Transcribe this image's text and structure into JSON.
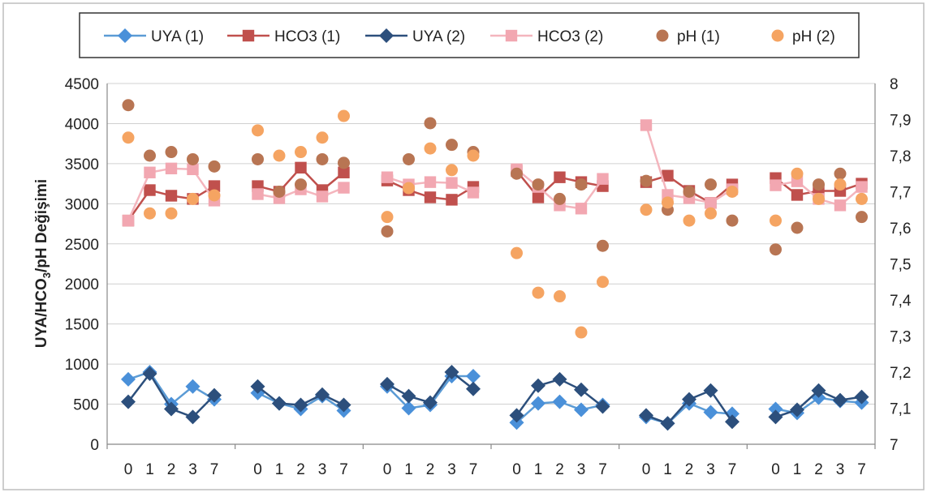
{
  "chart_data": {
    "type": "line",
    "title": "",
    "ylabel": "UYA/HCO3/pH Değişimi",
    "ylabel_parts": [
      "UYA/HCO",
      "3",
      "/pH Değişimi"
    ],
    "y2label": "",
    "ylim": [
      0,
      4500
    ],
    "yticks": [
      "0",
      "500",
      "1000",
      "1500",
      "2000",
      "2500",
      "3000",
      "3500",
      "4000",
      "4500"
    ],
    "y2lim": [
      7,
      8
    ],
    "y2ticks": [
      "7",
      "7,1",
      "7,2",
      "7,3",
      "7,4",
      "7,5",
      "7,6",
      "7,7",
      "7,8",
      "7,9",
      "8"
    ],
    "categories": [
      "0",
      "1",
      "2",
      "3",
      "7",
      "0",
      "1",
      "2",
      "3",
      "7",
      "0",
      "1",
      "2",
      "3",
      "7",
      "0",
      "1",
      "2",
      "3",
      "7",
      "0",
      "1",
      "2",
      "3",
      "7",
      "0",
      "1",
      "2",
      "3",
      "7"
    ],
    "group_size": 5,
    "grid": true,
    "legend_position": "top",
    "series": [
      {
        "name": "UYA (1)",
        "axis": "left",
        "style": "line",
        "marker": "diamond",
        "color": "#4a90d9",
        "line_color": "#5b9bd5",
        "values": [
          810,
          900,
          500,
          720,
          560,
          640,
          510,
          440,
          600,
          420,
          720,
          450,
          490,
          850,
          850,
          270,
          510,
          530,
          430,
          490,
          340,
          260,
          510,
          400,
          380,
          440,
          390,
          580,
          540,
          520
        ]
      },
      {
        "name": "HCO3 (1)",
        "axis": "left",
        "style": "line",
        "marker": "square",
        "color": "#c0504d",
        "line_color": "#c0504d",
        "values": [
          2790,
          3170,
          3100,
          3060,
          3220,
          3220,
          3150,
          3450,
          3170,
          3390,
          3290,
          3170,
          3080,
          3050,
          3210,
          3410,
          3080,
          3330,
          3270,
          3220,
          3270,
          3350,
          3160,
          3010,
          3240,
          3320,
          3110,
          3160,
          3160,
          3250
        ]
      },
      {
        "name": "UYA (2)",
        "axis": "left",
        "style": "line",
        "marker": "diamond",
        "color": "#2c4f7c",
        "line_color": "#2c4f7c",
        "values": [
          530,
          880,
          440,
          340,
          610,
          720,
          510,
          490,
          620,
          490,
          750,
          600,
          520,
          900,
          690,
          360,
          730,
          810,
          680,
          470,
          360,
          260,
          560,
          670,
          280,
          340,
          430,
          670,
          550,
          590
        ]
      },
      {
        "name": "HCO3 (2)",
        "axis": "left",
        "style": "line",
        "marker": "square",
        "color": "#f2a7b1",
        "line_color": "#f4b5bd",
        "values": [
          2790,
          3390,
          3440,
          3430,
          3040,
          3120,
          3070,
          3180,
          3090,
          3200,
          3330,
          3240,
          3270,
          3260,
          3140,
          3430,
          3210,
          2980,
          2940,
          3310,
          3980,
          3110,
          3070,
          3010,
          3180,
          3230,
          3280,
          3060,
          2980,
          3210
        ]
      },
      {
        "name": "pH (1)",
        "axis": "right",
        "style": "scatter",
        "marker": "circle",
        "color": "#b87553",
        "values": [
          7.94,
          7.8,
          7.81,
          7.79,
          7.77,
          7.79,
          7.7,
          7.72,
          7.79,
          7.78,
          7.59,
          7.79,
          7.89,
          7.83,
          7.81,
          7.75,
          7.72,
          7.68,
          7.72,
          7.55,
          7.73,
          7.65,
          7.7,
          7.72,
          7.62,
          7.54,
          7.6,
          7.72,
          7.75,
          7.63
        ]
      },
      {
        "name": "pH (2)",
        "axis": "right",
        "style": "scatter",
        "marker": "circle",
        "color": "#f5a462",
        "values": [
          7.85,
          7.64,
          7.64,
          7.68,
          7.69,
          7.87,
          7.8,
          7.81,
          7.85,
          7.91,
          7.63,
          7.71,
          7.82,
          7.76,
          7.8,
          7.53,
          7.42,
          7.41,
          7.31,
          7.45,
          7.65,
          7.67,
          7.62,
          7.64,
          7.7,
          7.62,
          7.75,
          7.68,
          7.72,
          7.68
        ]
      }
    ]
  }
}
